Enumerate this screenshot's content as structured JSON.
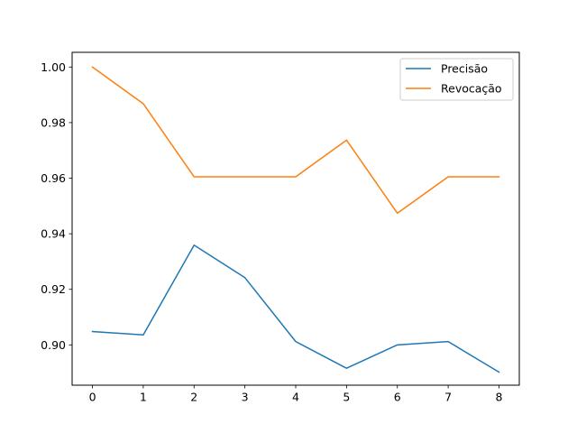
{
  "chart_data": {
    "type": "line",
    "title": "",
    "xlabel": "",
    "ylabel": "",
    "x": [
      0,
      1,
      2,
      3,
      4,
      5,
      6,
      7,
      8
    ],
    "xlim": [
      -0.4,
      8.4
    ],
    "ylim": [
      0.8855,
      1.0053
    ],
    "xticks": [
      0,
      1,
      2,
      3,
      4,
      5,
      6,
      7,
      8
    ],
    "yticks": [
      0.9,
      0.92,
      0.94,
      0.96,
      0.98,
      1.0
    ],
    "ytick_labels": [
      "0.90",
      "0.92",
      "0.94",
      "0.96",
      "0.98",
      "1.00"
    ],
    "grid": false,
    "legend_position": "top-right",
    "series": [
      {
        "name": "Precisão",
        "color": "#1f77b4",
        "values": [
          0.9048,
          0.9036,
          0.9359,
          0.9242,
          0.9012,
          0.8916,
          0.9,
          0.9012,
          0.8902
        ]
      },
      {
        "name": "Revocação",
        "color": "#ff7f0e",
        "values": [
          1.0,
          0.9868,
          0.9605,
          0.9605,
          0.9605,
          0.9737,
          0.9474,
          0.9605,
          0.9605
        ]
      }
    ]
  }
}
